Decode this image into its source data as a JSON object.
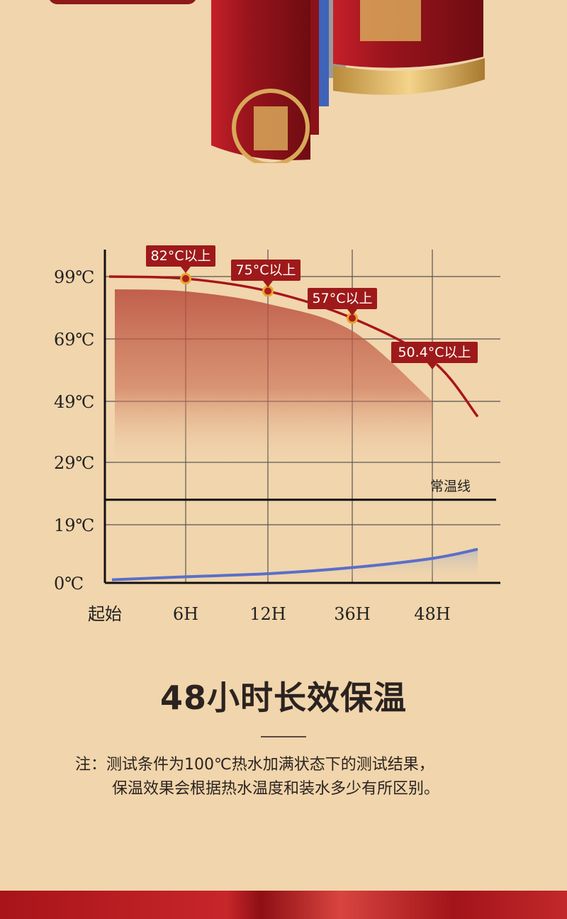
{
  "headline": "48小时长效保温",
  "note": {
    "line1": "注：测试条件为100℃热水加满状态下的测试结果，",
    "line2": "保温效果会根据热水温度和装水多少有所区别。"
  },
  "colors": {
    "background": "#f1d5ac",
    "hot_curve": "#a8141a",
    "cold_curve": "#5a6fc8",
    "callout": "#9e1a1a",
    "point_fill": "#e6a52a"
  },
  "chart_data": {
    "type": "line",
    "title": "",
    "xlabel": "",
    "ylabel": "",
    "categories": [
      "起始",
      "6H",
      "12H",
      "36H",
      "48H"
    ],
    "y_ticks": [
      "99℃",
      "69℃",
      "49℃",
      "29℃",
      "19℃",
      "0℃"
    ],
    "grid": true,
    "series": [
      {
        "values": [
          99,
          98,
          92,
          79,
          62
        ]
      },
      {
        "values": [
          1,
          2,
          3,
          5,
          8
        ]
      }
    ],
    "callouts": [
      {
        "category": "6H",
        "label": "82°C以上"
      },
      {
        "category": "12H",
        "label": "75°C以上"
      },
      {
        "category": "36H",
        "label": "57°C以上"
      },
      {
        "category": "48H",
        "label": "50.4°C以上"
      }
    ],
    "reference_line": {
      "label": "常温线",
      "value": 23
    }
  }
}
